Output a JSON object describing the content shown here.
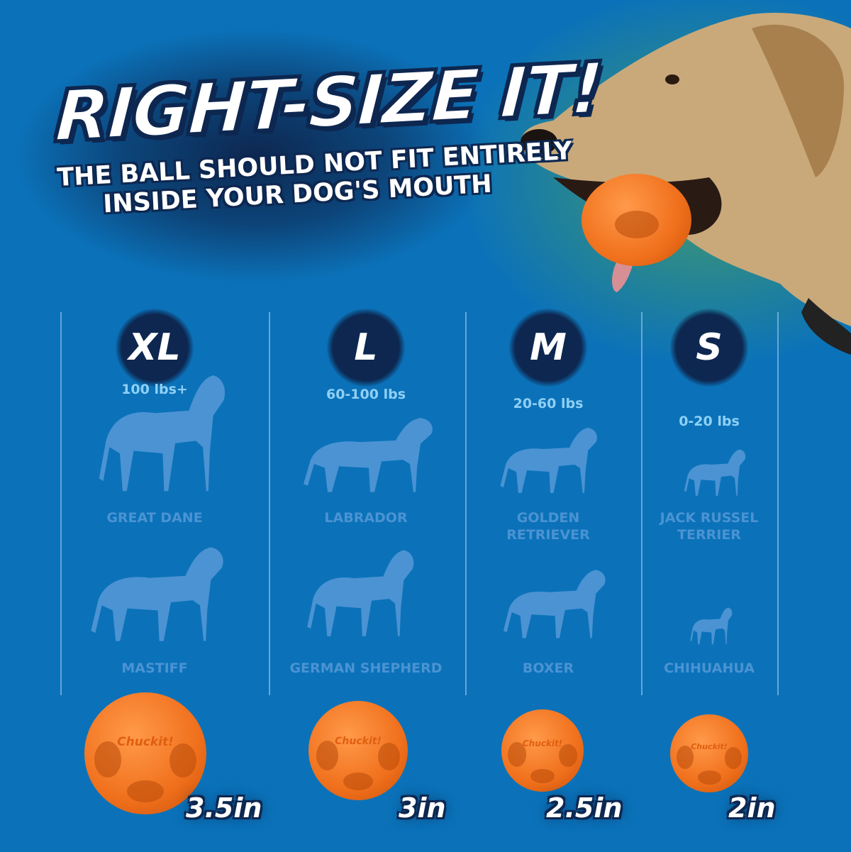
{
  "header": {
    "title": "RIGHT-SIZE IT!",
    "subtitle_lines": [
      "THE BALL SHOULD NOT FIT ENTIRELY",
      "INSIDE YOUR DOG'S MOUTH"
    ]
  },
  "colors": {
    "background": "#0b72b9",
    "badge": "#0d2750",
    "weight_text": "#8fd0f5",
    "silhouette": "#4b93d3",
    "ball": "#f0701c"
  },
  "sizes": [
    {
      "label": "XL",
      "weight": "100 lbs+",
      "breeds": [
        "GREAT DANE",
        "MASTIFF"
      ],
      "ball_size": "3.5in"
    },
    {
      "label": "L",
      "weight": "60-100 lbs",
      "breeds": [
        "LABRADOR",
        "GERMAN SHEPHERD"
      ],
      "ball_size": "3in"
    },
    {
      "label": "M",
      "weight": "20-60 lbs",
      "breeds": [
        "GOLDEN\nRETRIEVER",
        "BOXER"
      ],
      "ball_size": "2.5in"
    },
    {
      "label": "S",
      "weight": "0-20 lbs",
      "breeds": [
        "JACK RUSSEL\nTERRIER",
        "CHIHUAHUA"
      ],
      "ball_size": "2in"
    }
  ],
  "ball_logo": "Chuckit!"
}
